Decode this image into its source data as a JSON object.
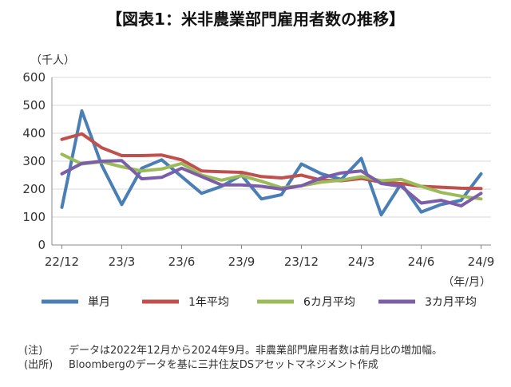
{
  "chart_data": {
    "type": "line",
    "title": "【図表1：米非農業部門雇用者数の推移】",
    "y_unit": "（千人）",
    "x_unit": "（年/月）",
    "ylim": [
      0,
      600
    ],
    "y_ticks": [
      0,
      100,
      200,
      300,
      400,
      500,
      600
    ],
    "x_tick_labels": [
      {
        "index": 0,
        "label": "22/12"
      },
      {
        "index": 3,
        "label": "23/3"
      },
      {
        "index": 6,
        "label": "23/6"
      },
      {
        "index": 9,
        "label": "23/9"
      },
      {
        "index": 12,
        "label": "23/12"
      },
      {
        "index": 15,
        "label": "24/3"
      },
      {
        "index": 18,
        "label": "24/6"
      },
      {
        "index": 21,
        "label": "24/9"
      }
    ],
    "x": [
      "2022-12",
      "2023-01",
      "2023-02",
      "2023-03",
      "2023-04",
      "2023-05",
      "2023-06",
      "2023-07",
      "2023-08",
      "2023-09",
      "2023-10",
      "2023-11",
      "2023-12",
      "2024-01",
      "2024-02",
      "2024-03",
      "2024-04",
      "2024-05",
      "2024-06",
      "2024-07",
      "2024-08",
      "2024-09"
    ],
    "grid": "horizontal",
    "legend_position": "bottom",
    "series": [
      {
        "name": "単月",
        "color": "#4a7fb5",
        "values": [
          135,
          480,
          285,
          145,
          275,
          305,
          245,
          185,
          210,
          250,
          165,
          180,
          290,
          255,
          235,
          310,
          108,
          220,
          118,
          145,
          160,
          255
        ]
      },
      {
        "name": "1年平均",
        "color": "#c0504d",
        "values": [
          378,
          398,
          348,
          320,
          320,
          322,
          305,
          265,
          262,
          260,
          245,
          240,
          250,
          232,
          230,
          238,
          225,
          220,
          210,
          207,
          203,
          202
        ]
      },
      {
        "name": "6カ月平均",
        "color": "#9bbb59",
        "values": [
          325,
          290,
          298,
          280,
          265,
          272,
          292,
          250,
          232,
          248,
          228,
          205,
          212,
          225,
          232,
          245,
          230,
          235,
          210,
          188,
          175,
          165
        ]
      },
      {
        "name": "3カ月平均",
        "color": "#7b5ea7",
        "values": [
          255,
          292,
          300,
          302,
          237,
          242,
          275,
          245,
          215,
          215,
          210,
          200,
          212,
          240,
          258,
          265,
          220,
          210,
          150,
          160,
          140,
          185
        ]
      }
    ]
  },
  "notes": [
    {
      "label": "(注)",
      "text": "データは2022年12月から2024年9月。非農業部門雇用者数は前月比の増加幅。"
    },
    {
      "label": "(出所)",
      "text": "Bloombergのデータを基に三井住友DSアセットマネジメント作成"
    }
  ]
}
